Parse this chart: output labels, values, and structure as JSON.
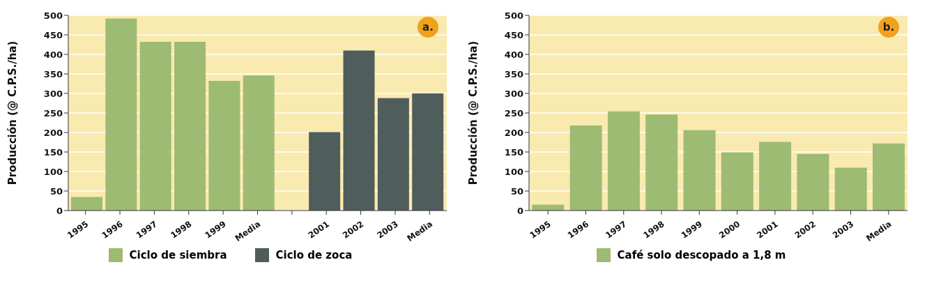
{
  "chart_data": [
    {
      "type": "bar",
      "categories": [
        "1995",
        "1996",
        "1997",
        "1998",
        "1999",
        "Media",
        null,
        "2001",
        "2002",
        "2003",
        "Media"
      ],
      "ylabel": "Producción (@ C.P.S./ha)",
      "ylim": [
        0,
        500
      ],
      "yticks": [
        0,
        50,
        100,
        150,
        200,
        250,
        300,
        350,
        400,
        450,
        500
      ],
      "grid": "y",
      "legend": "bottom",
      "annotations": [
        "a."
      ],
      "series": [
        {
          "name": "Ciclo de siembra",
          "color": "#9dbb72",
          "values": [
            35,
            492,
            432,
            432,
            332,
            346,
            null,
            null,
            null,
            null,
            null
          ]
        },
        {
          "name": "Ciclo de zoca",
          "color": "#4f5d5d",
          "values": [
            null,
            null,
            null,
            null,
            null,
            null,
            null,
            201,
            410,
            288,
            300
          ]
        }
      ]
    },
    {
      "type": "bar",
      "categories": [
        "1995",
        "1996",
        "1997",
        "1998",
        "1999",
        "2000",
        "2001",
        "2002",
        "2003",
        "Media"
      ],
      "ylabel": "Producción (@ C.P.S./ha)",
      "ylim": [
        0,
        500
      ],
      "yticks": [
        0,
        50,
        100,
        150,
        200,
        250,
        300,
        350,
        400,
        450,
        500
      ],
      "grid": "y",
      "legend": "bottom",
      "annotations": [
        "b."
      ],
      "series": [
        {
          "name": "Café solo descopado a 1,8 m",
          "color": "#9dbb72",
          "values": [
            15,
            218,
            254,
            246,
            206,
            149,
            176,
            145,
            110,
            172
          ]
        }
      ]
    }
  ]
}
